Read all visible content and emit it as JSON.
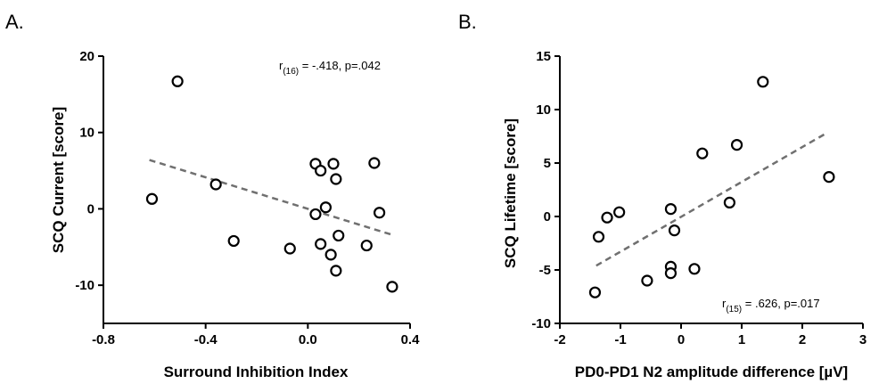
{
  "chart_data": [
    {
      "panel": "A.",
      "type": "scatter",
      "xlabel": "Surround Inhibition Index",
      "ylabel": "SCQ Current [score]",
      "xlim": [
        -0.8,
        0.4
      ],
      "ylim": [
        -15,
        20
      ],
      "xticks": [
        -0.8,
        -0.4,
        0.0,
        0.4
      ],
      "xtick_labels": [
        "-0.8",
        "-0.4",
        "0.0",
        "0.4"
      ],
      "yticks": [
        -10,
        0,
        10,
        20
      ],
      "ytick_labels": [
        "-10",
        "0",
        "10",
        "20"
      ],
      "grid": false,
      "stat_prefix": "r",
      "stat_sub": "(16)",
      "stat_suffix": " = -.418, p=.042",
      "trend": {
        "x": [
          -0.62,
          0.33
        ],
        "y": [
          6.4,
          -3.4
        ]
      },
      "points": [
        {
          "x": -0.61,
          "y": 1.3
        },
        {
          "x": -0.51,
          "y": 16.7
        },
        {
          "x": -0.36,
          "y": 3.2
        },
        {
          "x": -0.29,
          "y": -4.2
        },
        {
          "x": -0.07,
          "y": -5.2
        },
        {
          "x": 0.03,
          "y": 5.9
        },
        {
          "x": 0.03,
          "y": -0.7
        },
        {
          "x": 0.05,
          "y": 5.0
        },
        {
          "x": 0.05,
          "y": -4.6
        },
        {
          "x": 0.07,
          "y": 0.2
        },
        {
          "x": 0.09,
          "y": -6.0
        },
        {
          "x": 0.1,
          "y": 5.9
        },
        {
          "x": 0.11,
          "y": 3.9
        },
        {
          "x": 0.11,
          "y": -8.1
        },
        {
          "x": 0.12,
          "y": -3.5
        },
        {
          "x": 0.23,
          "y": -4.8
        },
        {
          "x": 0.26,
          "y": 6.0
        },
        {
          "x": 0.28,
          "y": -0.5
        },
        {
          "x": 0.33,
          "y": -10.2
        }
      ]
    },
    {
      "panel": "B.",
      "type": "scatter",
      "xlabel": "PD0-PD1 N2 amplitude difference [µV]",
      "ylabel": "SCQ Lifetime [score]",
      "xlim": [
        -2,
        3
      ],
      "ylim": [
        -10,
        15
      ],
      "xticks": [
        -2,
        -1,
        0,
        1,
        2,
        3
      ],
      "xtick_labels": [
        "-2",
        "-1",
        "0",
        "1",
        "2",
        "3"
      ],
      "yticks": [
        -10,
        -5,
        0,
        5,
        10,
        15
      ],
      "ytick_labels": [
        "-10",
        "-5",
        "0",
        "5",
        "10",
        "15"
      ],
      "grid": false,
      "stat_prefix": "r",
      "stat_sub": "(15)",
      "stat_suffix": " = .626, p=.017",
      "trend": {
        "x": [
          -1.4,
          2.4
        ],
        "y": [
          -4.6,
          7.8
        ]
      },
      "points": [
        {
          "x": -1.42,
          "y": -7.1
        },
        {
          "x": -1.36,
          "y": -1.9
        },
        {
          "x": -1.22,
          "y": -0.1
        },
        {
          "x": -1.02,
          "y": 0.4
        },
        {
          "x": -0.56,
          "y": -6.0
        },
        {
          "x": -0.17,
          "y": 0.7
        },
        {
          "x": -0.17,
          "y": -4.7
        },
        {
          "x": -0.17,
          "y": -5.3
        },
        {
          "x": -0.11,
          "y": -1.3
        },
        {
          "x": 0.22,
          "y": -4.9
        },
        {
          "x": 0.35,
          "y": 5.9
        },
        {
          "x": 0.8,
          "y": 1.3
        },
        {
          "x": 0.92,
          "y": 6.7
        },
        {
          "x": 1.35,
          "y": 12.6
        },
        {
          "x": 2.44,
          "y": 3.7
        }
      ]
    }
  ]
}
